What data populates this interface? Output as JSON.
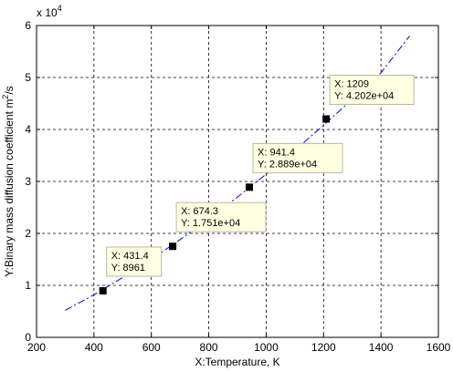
{
  "chart_data": {
    "type": "line",
    "title": "",
    "xlabel": "X:Temperature, K",
    "ylabel_main": "Y:Binary mass diffusion coefficient  m",
    "ylabel_sup": "2",
    "ylabel_tail": "/s",
    "exponent_base": "x 10",
    "exponent_power": "4",
    "xlim": [
      200,
      1600
    ],
    "ylim": [
      0,
      6
    ],
    "x_scale_factor": 10000,
    "xticks": [
      "200",
      "400",
      "600",
      "800",
      "1000",
      "1200",
      "1400",
      "1600"
    ],
    "yticks": [
      "0",
      "1",
      "2",
      "3",
      "4",
      "5",
      "6"
    ],
    "grid": true,
    "series": [
      {
        "color": "#0000ff",
        "style": "dash-dot",
        "x": [
          300,
          400,
          500,
          600,
          700,
          800,
          900,
          1000,
          1100,
          1200,
          1300,
          1400,
          1500
        ],
        "y": [
          0.52,
          0.82,
          1.15,
          1.5,
          1.88,
          2.28,
          2.7,
          3.14,
          3.6,
          4.08,
          4.58,
          5.09,
          5.8
        ]
      }
    ],
    "markers": [
      {
        "x": 431.4,
        "y": 0.8961
      },
      {
        "x": 674.3,
        "y": 1.751
      },
      {
        "x": 941.4,
        "y": 2.889
      },
      {
        "x": 1209,
        "y": 4.202
      }
    ],
    "datatips": [
      {
        "x_text": "X: 431.4",
        "y_text": "Y: 8961"
      },
      {
        "x_text": "X: 674.3",
        "y_text": "Y: 1.751e+04"
      },
      {
        "x_text": "X: 941.4",
        "y_text": "Y: 2.889e+04"
      },
      {
        "x_text": "X: 1209",
        "y_text": "Y: 4.202e+04"
      }
    ]
  }
}
